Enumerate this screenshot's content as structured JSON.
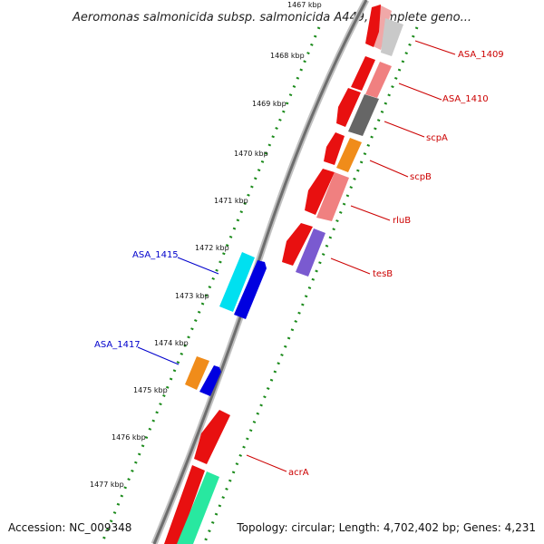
{
  "title": "Aeromonas salmonicida subsp. salmonicida A449, complete geno...",
  "footer": {
    "accession": "Accession: NC_009348",
    "summary": "Topology: circular; Length: 4,702,402 bp; Genes: 4,231"
  },
  "colors": {
    "forward_label": "#cc0000",
    "reverse_label": "#0000cc",
    "backbone": "#888888",
    "tick_dots": "#1a8a1a"
  },
  "kbp_labels": [
    "1467 kbp",
    "1468 kbp",
    "1469 kbp",
    "1470 kbp",
    "1471 kbp",
    "1472 kbp",
    "1473 kbp",
    "1474 kbp",
    "1475 kbp",
    "1476 kbp",
    "1477 kbp"
  ],
  "gene_labels": {
    "ASA_1409": "ASA_1409",
    "ASA_1410": "ASA_1410",
    "scpA": "scpA",
    "scpB": "scpB",
    "rluB": "rluB",
    "tesB": "tesB",
    "ASA_1415": "ASA_1415",
    "ASA_1417": "ASA_1417",
    "acrA": "acrA"
  }
}
